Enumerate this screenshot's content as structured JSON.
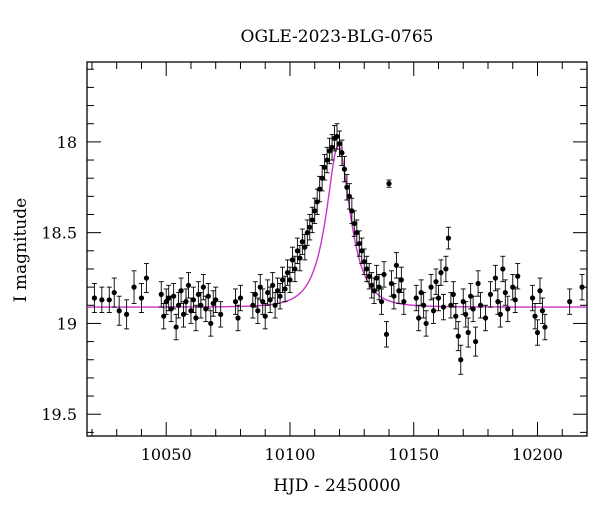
{
  "chart_data": {
    "type": "scatter",
    "title": "OGLE-2023-BLG-0765",
    "xlabel": "HJD - 2450000",
    "ylabel": "I magnitude",
    "xlim": [
      10018,
      10220
    ],
    "ylim": [
      19.62,
      17.56
    ],
    "y_inverted": true,
    "grid": false,
    "x_ticks": [
      10050,
      10100,
      10150,
      10200
    ],
    "x_tick_labels": [
      "10050",
      "10100",
      "10150",
      "10200"
    ],
    "y_ticks": [
      18,
      18.5,
      19,
      19.5
    ],
    "y_tick_labels": [
      "18",
      "18.5",
      "19",
      "19.5"
    ],
    "colors": {
      "points": "#000000",
      "model": "#cc33cc",
      "axes": "#000000"
    },
    "model": {
      "t0": 10119.5,
      "baseline_mag": 18.91,
      "peak_mag": 18.02,
      "tE": 8.5,
      "color": "#cc33cc"
    },
    "series": [
      {
        "marker": "filled-circle-with-errorbars",
        "points": [
          [
            10021,
            18.86,
            0.08
          ],
          [
            10024,
            18.87,
            0.07
          ],
          [
            10027,
            18.87,
            0.07
          ],
          [
            10029,
            18.83,
            0.08
          ],
          [
            10031,
            18.93,
            0.08
          ],
          [
            10034,
            18.95,
            0.08
          ],
          [
            10037,
            18.8,
            0.09
          ],
          [
            10040,
            18.86,
            0.08
          ],
          [
            10042,
            18.75,
            0.08
          ],
          [
            10048,
            18.84,
            0.07
          ],
          [
            10049,
            18.96,
            0.07
          ],
          [
            10050,
            18.88,
            0.07
          ],
          [
            10051,
            18.86,
            0.07
          ],
          [
            10052,
            18.92,
            0.07
          ],
          [
            10053,
            18.85,
            0.07
          ],
          [
            10054,
            19.02,
            0.07
          ],
          [
            10055,
            18.9,
            0.07
          ],
          [
            10056,
            18.82,
            0.07
          ],
          [
            10057,
            18.95,
            0.07
          ],
          [
            10058,
            18.88,
            0.07
          ],
          [
            10059,
            18.79,
            0.07
          ],
          [
            10060,
            18.93,
            0.07
          ],
          [
            10061,
            18.87,
            0.07
          ],
          [
            10062,
            18.97,
            0.07
          ],
          [
            10063,
            18.84,
            0.07
          ],
          [
            10064,
            18.9,
            0.07
          ],
          [
            10065,
            18.8,
            0.07
          ],
          [
            10066,
            18.92,
            0.07
          ],
          [
            10067,
            18.85,
            0.07
          ],
          [
            10068,
            19.0,
            0.07
          ],
          [
            10069,
            18.89,
            0.07
          ],
          [
            10070,
            18.87,
            0.07
          ],
          [
            10072,
            18.95,
            0.07
          ],
          [
            10078,
            18.88,
            0.07
          ],
          [
            10079,
            18.97,
            0.07
          ],
          [
            10080,
            18.86,
            0.07
          ],
          [
            10085,
            18.9,
            0.07
          ],
          [
            10086,
            18.84,
            0.07
          ],
          [
            10087,
            18.93,
            0.07
          ],
          [
            10088,
            18.8,
            0.07
          ],
          [
            10089,
            18.88,
            0.07
          ],
          [
            10090,
            18.96,
            0.07
          ],
          [
            10091,
            18.83,
            0.07
          ],
          [
            10092,
            18.87,
            0.07
          ],
          [
            10093,
            18.79,
            0.07
          ],
          [
            10094,
            18.9,
            0.07
          ],
          [
            10095,
            18.82,
            0.07
          ],
          [
            10096,
            18.85,
            0.07
          ],
          [
            10097,
            18.76,
            0.07
          ],
          [
            10098,
            18.81,
            0.07
          ],
          [
            10099,
            18.72,
            0.07
          ],
          [
            10100,
            18.76,
            0.07
          ],
          [
            10101,
            18.65,
            0.07
          ],
          [
            10102,
            18.7,
            0.07
          ],
          [
            10103,
            18.6,
            0.07
          ],
          [
            10104,
            18.64,
            0.07
          ],
          [
            10105,
            18.55,
            0.07
          ],
          [
            10106,
            18.58,
            0.07
          ],
          [
            10107,
            18.5,
            0.07
          ],
          [
            10108,
            18.47,
            0.07
          ],
          [
            10109,
            18.43,
            0.07
          ],
          [
            10110,
            18.38,
            0.07
          ],
          [
            10111,
            18.33,
            0.07
          ],
          [
            10112,
            18.26,
            0.07
          ],
          [
            10113,
            18.2,
            0.07
          ],
          [
            10114,
            18.14,
            0.07
          ],
          [
            10115,
            18.1,
            0.07
          ],
          [
            10116,
            18.05,
            0.07
          ],
          [
            10117,
            18.03,
            0.07
          ],
          [
            10118,
            17.98,
            0.07
          ],
          [
            10119,
            17.97,
            0.07
          ],
          [
            10120,
            18.01,
            0.07
          ],
          [
            10121,
            18.06,
            0.07
          ],
          [
            10122,
            18.15,
            0.07
          ],
          [
            10123,
            18.25,
            0.07
          ],
          [
            10124,
            18.3,
            0.07
          ],
          [
            10125,
            18.38,
            0.07
          ],
          [
            10126,
            18.45,
            0.07
          ],
          [
            10127,
            18.5,
            0.07
          ],
          [
            10128,
            18.56,
            0.07
          ],
          [
            10129,
            18.6,
            0.07
          ],
          [
            10130,
            18.66,
            0.07
          ],
          [
            10131,
            18.7,
            0.07
          ],
          [
            10132,
            18.74,
            0.07
          ],
          [
            10133,
            18.79,
            0.07
          ],
          [
            10134,
            18.82,
            0.07
          ],
          [
            10135,
            18.75,
            0.07
          ],
          [
            10136,
            18.8,
            0.07
          ],
          [
            10137,
            18.88,
            0.07
          ],
          [
            10138,
            18.73,
            0.07
          ],
          [
            10139,
            19.06,
            0.07
          ],
          [
            10140,
            18.23,
            0.02
          ],
          [
            10141,
            18.78,
            0.07
          ],
          [
            10142,
            18.85,
            0.07
          ],
          [
            10143,
            18.68,
            0.07
          ],
          [
            10144,
            18.82,
            0.07
          ],
          [
            10145,
            18.76,
            0.07
          ],
          [
            10146,
            18.88,
            0.07
          ],
          [
            10151,
            18.86,
            0.07
          ],
          [
            10152,
            18.97,
            0.07
          ],
          [
            10153,
            18.83,
            0.07
          ],
          [
            10154,
            18.9,
            0.07
          ],
          [
            10155,
            19.0,
            0.07
          ],
          [
            10157,
            18.8,
            0.07
          ],
          [
            10158,
            18.93,
            0.07
          ],
          [
            10159,
            18.77,
            0.07
          ],
          [
            10160,
            18.86,
            0.07
          ],
          [
            10161,
            18.72,
            0.07
          ],
          [
            10162,
            18.91,
            0.07
          ],
          [
            10163,
            18.7,
            0.07
          ],
          [
            10164,
            18.53,
            0.06
          ],
          [
            10165,
            18.9,
            0.07
          ],
          [
            10166,
            18.84,
            0.07
          ],
          [
            10167,
            18.96,
            0.07
          ],
          [
            10168,
            19.07,
            0.08
          ],
          [
            10169,
            19.2,
            0.08
          ],
          [
            10170,
            18.88,
            0.07
          ],
          [
            10171,
            18.95,
            0.07
          ],
          [
            10172,
            19.05,
            0.08
          ],
          [
            10173,
            18.85,
            0.07
          ],
          [
            10174,
            18.92,
            0.07
          ],
          [
            10175,
            19.1,
            0.08
          ],
          [
            10176,
            18.78,
            0.07
          ],
          [
            10177,
            18.9,
            0.07
          ],
          [
            10179,
            18.97,
            0.07
          ],
          [
            10181,
            18.84,
            0.07
          ],
          [
            10183,
            18.75,
            0.07
          ],
          [
            10184,
            18.88,
            0.07
          ],
          [
            10185,
            18.95,
            0.07
          ],
          [
            10186,
            18.7,
            0.07
          ],
          [
            10187,
            18.83,
            0.07
          ],
          [
            10188,
            18.92,
            0.07
          ],
          [
            10190,
            18.8,
            0.07
          ],
          [
            10191,
            18.87,
            0.07
          ],
          [
            10192,
            18.74,
            0.07
          ],
          [
            10198,
            18.86,
            0.07
          ],
          [
            10199,
            18.96,
            0.07
          ],
          [
            10200,
            19.05,
            0.07
          ],
          [
            10201,
            18.82,
            0.07
          ],
          [
            10202,
            18.93,
            0.07
          ],
          [
            10203,
            19.02,
            0.07
          ],
          [
            10213,
            18.88,
            0.07
          ],
          [
            10218,
            18.8,
            0.07
          ]
        ]
      }
    ]
  }
}
